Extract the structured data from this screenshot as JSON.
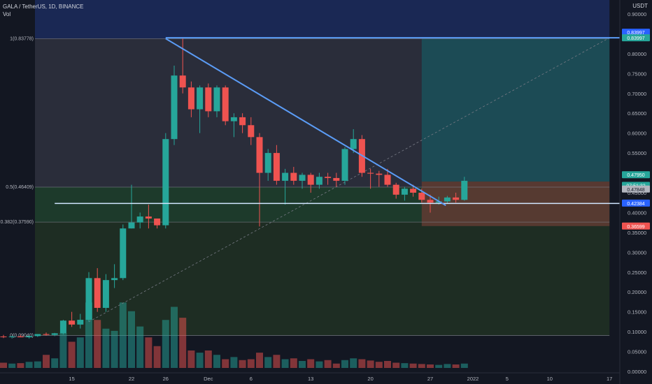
{
  "header": {
    "symbol_line": "GALA / TetherUS, 1D, BINANCE",
    "vol_label": "Vol"
  },
  "currency": "USDT",
  "colors": {
    "background": "#131722",
    "up": "#26a69a",
    "down": "#ef5350",
    "trendline": "#5b9cf6",
    "target_zone": "#1b4d56",
    "stop_zone": "#5a3a32",
    "top_band": "#1c2a5a",
    "fib_upper": "#2a2d3a",
    "fib_mid": "#1d3a2b",
    "fib_lower": "#1e2d23"
  },
  "chart_data": {
    "type": "candlestick",
    "title": "GALA / TetherUS, 1D, BINANCE",
    "y_axis": {
      "min": 0.0,
      "max": 0.9,
      "ticks": [
        "0.90000",
        "0.85000",
        "0.80000",
        "0.75000",
        "0.70000",
        "0.65000",
        "0.60000",
        "0.55000",
        "0.50000",
        "0.45000",
        "0.40000",
        "0.35000",
        "0.30000",
        "0.25000",
        "0.20000",
        "0.15000",
        "0.10000",
        "0.05000",
        "0.00000"
      ],
      "tick_values": [
        0.9,
        0.85,
        0.8,
        0.75,
        0.7,
        0.65,
        0.6,
        0.55,
        0.5,
        0.45,
        0.4,
        0.35,
        0.3,
        0.25,
        0.2,
        0.15,
        0.1,
        0.05,
        0.0
      ]
    },
    "x_axis": {
      "start_date": "2021-11-07",
      "end_date": "2022-01-20",
      "tick_labels": [
        {
          "date": "2021-11-15",
          "label": "15"
        },
        {
          "date": "2021-11-22",
          "label": "22"
        },
        {
          "date": "2021-11-26",
          "label": "26"
        },
        {
          "date": "2021-12-01",
          "label": "Dec"
        },
        {
          "date": "2021-12-06",
          "label": "6"
        },
        {
          "date": "2021-12-13",
          "label": "13"
        },
        {
          "date": "2021-12-20",
          "label": "20"
        },
        {
          "date": "2021-12-27",
          "label": "27"
        },
        {
          "date": "2022-01-01",
          "label": "2022"
        },
        {
          "date": "2022-01-05",
          "label": "5"
        },
        {
          "date": "2022-01-10",
          "label": "10"
        },
        {
          "date": "2022-01-17",
          "label": "17"
        }
      ]
    },
    "candles": [
      {
        "date": "2021-11-07",
        "o": 0.088,
        "h": 0.092,
        "l": 0.084,
        "c": 0.087,
        "v": 0.012
      },
      {
        "date": "2021-11-08",
        "o": 0.087,
        "h": 0.09,
        "l": 0.083,
        "c": 0.088,
        "v": 0.01
      },
      {
        "date": "2021-11-09",
        "o": 0.088,
        "h": 0.092,
        "l": 0.086,
        "c": 0.086,
        "v": 0.011
      },
      {
        "date": "2021-11-10",
        "o": 0.086,
        "h": 0.09,
        "l": 0.083,
        "c": 0.089,
        "v": 0.014
      },
      {
        "date": "2021-11-11",
        "o": 0.089,
        "h": 0.094,
        "l": 0.087,
        "c": 0.094,
        "v": 0.015
      },
      {
        "date": "2021-11-12",
        "o": 0.094,
        "h": 0.098,
        "l": 0.09,
        "c": 0.092,
        "v": 0.03
      },
      {
        "date": "2021-11-13",
        "o": 0.092,
        "h": 0.097,
        "l": 0.089,
        "c": 0.096,
        "v": 0.022
      },
      {
        "date": "2021-11-14",
        "o": 0.096,
        "h": 0.13,
        "l": 0.093,
        "c": 0.128,
        "v": 0.08
      },
      {
        "date": "2021-11-15",
        "o": 0.128,
        "h": 0.15,
        "l": 0.112,
        "c": 0.118,
        "v": 0.06
      },
      {
        "date": "2021-11-16",
        "o": 0.118,
        "h": 0.145,
        "l": 0.108,
        "c": 0.13,
        "v": 0.07
      },
      {
        "date": "2021-11-17",
        "o": 0.13,
        "h": 0.25,
        "l": 0.125,
        "c": 0.235,
        "v": 0.15
      },
      {
        "date": "2021-11-18",
        "o": 0.235,
        "h": 0.26,
        "l": 0.15,
        "c": 0.16,
        "v": 0.11
      },
      {
        "date": "2021-11-19",
        "o": 0.16,
        "h": 0.245,
        "l": 0.15,
        "c": 0.23,
        "v": 0.09
      },
      {
        "date": "2021-11-20",
        "o": 0.23,
        "h": 0.27,
        "l": 0.21,
        "c": 0.235,
        "v": 0.085
      },
      {
        "date": "2021-11-21",
        "o": 0.235,
        "h": 0.37,
        "l": 0.23,
        "c": 0.36,
        "v": 0.15
      },
      {
        "date": "2021-11-22",
        "o": 0.36,
        "h": 0.47,
        "l": 0.36,
        "c": 0.375,
        "v": 0.13
      },
      {
        "date": "2021-11-23",
        "o": 0.375,
        "h": 0.4,
        "l": 0.36,
        "c": 0.39,
        "v": 0.095
      },
      {
        "date": "2021-11-24",
        "o": 0.39,
        "h": 0.42,
        "l": 0.36,
        "c": 0.385,
        "v": 0.07
      },
      {
        "date": "2021-11-25",
        "o": 0.385,
        "h": 0.38,
        "l": 0.36,
        "c": 0.368,
        "v": 0.05
      },
      {
        "date": "2021-11-26",
        "o": 0.368,
        "h": 0.6,
        "l": 0.36,
        "c": 0.585,
        "v": 0.11
      },
      {
        "date": "2021-11-27",
        "o": 0.585,
        "h": 0.77,
        "l": 0.57,
        "c": 0.745,
        "v": 0.14
      },
      {
        "date": "2021-11-28",
        "o": 0.745,
        "h": 0.838,
        "l": 0.7,
        "c": 0.715,
        "v": 0.115
      },
      {
        "date": "2021-11-29",
        "o": 0.715,
        "h": 0.73,
        "l": 0.64,
        "c": 0.66,
        "v": 0.04
      },
      {
        "date": "2021-11-30",
        "o": 0.66,
        "h": 0.72,
        "l": 0.6,
        "c": 0.715,
        "v": 0.035
      },
      {
        "date": "2021-12-01",
        "o": 0.715,
        "h": 0.725,
        "l": 0.64,
        "c": 0.655,
        "v": 0.04
      },
      {
        "date": "2021-12-02",
        "o": 0.655,
        "h": 0.72,
        "l": 0.64,
        "c": 0.715,
        "v": 0.03
      },
      {
        "date": "2021-12-03",
        "o": 0.715,
        "h": 0.72,
        "l": 0.62,
        "c": 0.63,
        "v": 0.02
      },
      {
        "date": "2021-12-04",
        "o": 0.63,
        "h": 0.65,
        "l": 0.59,
        "c": 0.64,
        "v": 0.025
      },
      {
        "date": "2021-12-05",
        "o": 0.64,
        "h": 0.65,
        "l": 0.6,
        "c": 0.62,
        "v": 0.018
      },
      {
        "date": "2021-12-06",
        "o": 0.62,
        "h": 0.64,
        "l": 0.57,
        "c": 0.59,
        "v": 0.02
      },
      {
        "date": "2021-12-07",
        "o": 0.59,
        "h": 0.6,
        "l": 0.365,
        "c": 0.5,
        "v": 0.035
      },
      {
        "date": "2021-12-08",
        "o": 0.5,
        "h": 0.56,
        "l": 0.48,
        "c": 0.55,
        "v": 0.025
      },
      {
        "date": "2021-12-09",
        "o": 0.55,
        "h": 0.57,
        "l": 0.47,
        "c": 0.48,
        "v": 0.03
      },
      {
        "date": "2021-12-10",
        "o": 0.48,
        "h": 0.51,
        "l": 0.42,
        "c": 0.5,
        "v": 0.02
      },
      {
        "date": "2021-12-11",
        "o": 0.5,
        "h": 0.515,
        "l": 0.47,
        "c": 0.48,
        "v": 0.022
      },
      {
        "date": "2021-12-12",
        "o": 0.48,
        "h": 0.5,
        "l": 0.46,
        "c": 0.495,
        "v": 0.016
      },
      {
        "date": "2021-12-13",
        "o": 0.495,
        "h": 0.5,
        "l": 0.45,
        "c": 0.47,
        "v": 0.02
      },
      {
        "date": "2021-12-14",
        "o": 0.47,
        "h": 0.5,
        "l": 0.46,
        "c": 0.49,
        "v": 0.015
      },
      {
        "date": "2021-12-15",
        "o": 0.49,
        "h": 0.5,
        "l": 0.47,
        "c": 0.487,
        "v": 0.018
      },
      {
        "date": "2021-12-16",
        "o": 0.487,
        "h": 0.5,
        "l": 0.465,
        "c": 0.48,
        "v": 0.01
      },
      {
        "date": "2021-12-17",
        "o": 0.48,
        "h": 0.565,
        "l": 0.47,
        "c": 0.56,
        "v": 0.018
      },
      {
        "date": "2021-12-18",
        "o": 0.56,
        "h": 0.61,
        "l": 0.55,
        "c": 0.585,
        "v": 0.022
      },
      {
        "date": "2021-12-19",
        "o": 0.585,
        "h": 0.595,
        "l": 0.49,
        "c": 0.5,
        "v": 0.02
      },
      {
        "date": "2021-12-20",
        "o": 0.5,
        "h": 0.51,
        "l": 0.46,
        "c": 0.498,
        "v": 0.017
      },
      {
        "date": "2021-12-21",
        "o": 0.498,
        "h": 0.505,
        "l": 0.465,
        "c": 0.495,
        "v": 0.014
      },
      {
        "date": "2021-12-22",
        "o": 0.495,
        "h": 0.51,
        "l": 0.465,
        "c": 0.47,
        "v": 0.016
      },
      {
        "date": "2021-12-23",
        "o": 0.47,
        "h": 0.475,
        "l": 0.435,
        "c": 0.445,
        "v": 0.012
      },
      {
        "date": "2021-12-24",
        "o": 0.445,
        "h": 0.465,
        "l": 0.43,
        "c": 0.46,
        "v": 0.011
      },
      {
        "date": "2021-12-25",
        "o": 0.46,
        "h": 0.47,
        "l": 0.44,
        "c": 0.45,
        "v": 0.01
      },
      {
        "date": "2021-12-26",
        "o": 0.45,
        "h": 0.46,
        "l": 0.425,
        "c": 0.432,
        "v": 0.009
      },
      {
        "date": "2021-12-27",
        "o": 0.432,
        "h": 0.445,
        "l": 0.4,
        "c": 0.425,
        "v": 0.008
      },
      {
        "date": "2021-12-28",
        "o": 0.425,
        "h": 0.44,
        "l": 0.42,
        "c": 0.428,
        "v": 0.007
      },
      {
        "date": "2021-12-29",
        "o": 0.428,
        "h": 0.442,
        "l": 0.423,
        "c": 0.438,
        "v": 0.009
      },
      {
        "date": "2021-12-30",
        "o": 0.438,
        "h": 0.45,
        "l": 0.425,
        "c": 0.432,
        "v": 0.008
      },
      {
        "date": "2021-12-31",
        "o": 0.432,
        "h": 0.49,
        "l": 0.43,
        "c": 0.48,
        "v": 0.01
      }
    ],
    "volume_axis_max": 0.16,
    "fib_levels": [
      {
        "label": "1(0.83778)",
        "value": 0.83778
      },
      {
        "label": "0.5(0.46409)",
        "value": 0.46409
      },
      {
        "label": "0.382(0.37590)",
        "value": 0.3759
      },
      {
        "label": "0(0.09040)",
        "value": 0.0904
      }
    ],
    "fib_start_date": "2021-11-07",
    "fib_end_date": "2022-01-17",
    "trendline": {
      "start": {
        "date": "2021-11-26",
        "price": 0.838
      },
      "end": {
        "date": "2021-12-28",
        "price": 0.418
      }
    },
    "support_line": {
      "start_date": "2021-11-13",
      "end_date": "2022-01-20",
      "price": 0.423
    },
    "resistance_line": {
      "start_date": "2021-11-26",
      "end_date": "2022-01-20",
      "price": 0.84
    },
    "dotted_line": {
      "start": {
        "date": "2021-11-17",
        "price": 0.125
      },
      "end": {
        "date": "2022-01-17",
        "price": 0.84
      }
    },
    "position": {
      "start_date": "2021-12-26",
      "end_date": "2022-01-17",
      "entry": 0.478,
      "target": 0.838,
      "stop": 0.366
    },
    "price_tags": [
      {
        "value": 0.83997,
        "label": "0.83997",
        "style": "blue"
      },
      {
        "value": 0.83997,
        "label": "0.83997",
        "style": "teal"
      },
      {
        "value": 0.4795,
        "label": "0.47950",
        "style": "teal"
      },
      {
        "value": 0.4684,
        "label": "07:51:32",
        "style": "teal"
      },
      {
        "value": 0.47848,
        "label": "0.47848",
        "style": "grey"
      },
      {
        "value": 0.42384,
        "label": "0.42384",
        "style": "blue"
      },
      {
        "value": 0.36599,
        "label": "0.36599",
        "style": "red"
      }
    ]
  }
}
